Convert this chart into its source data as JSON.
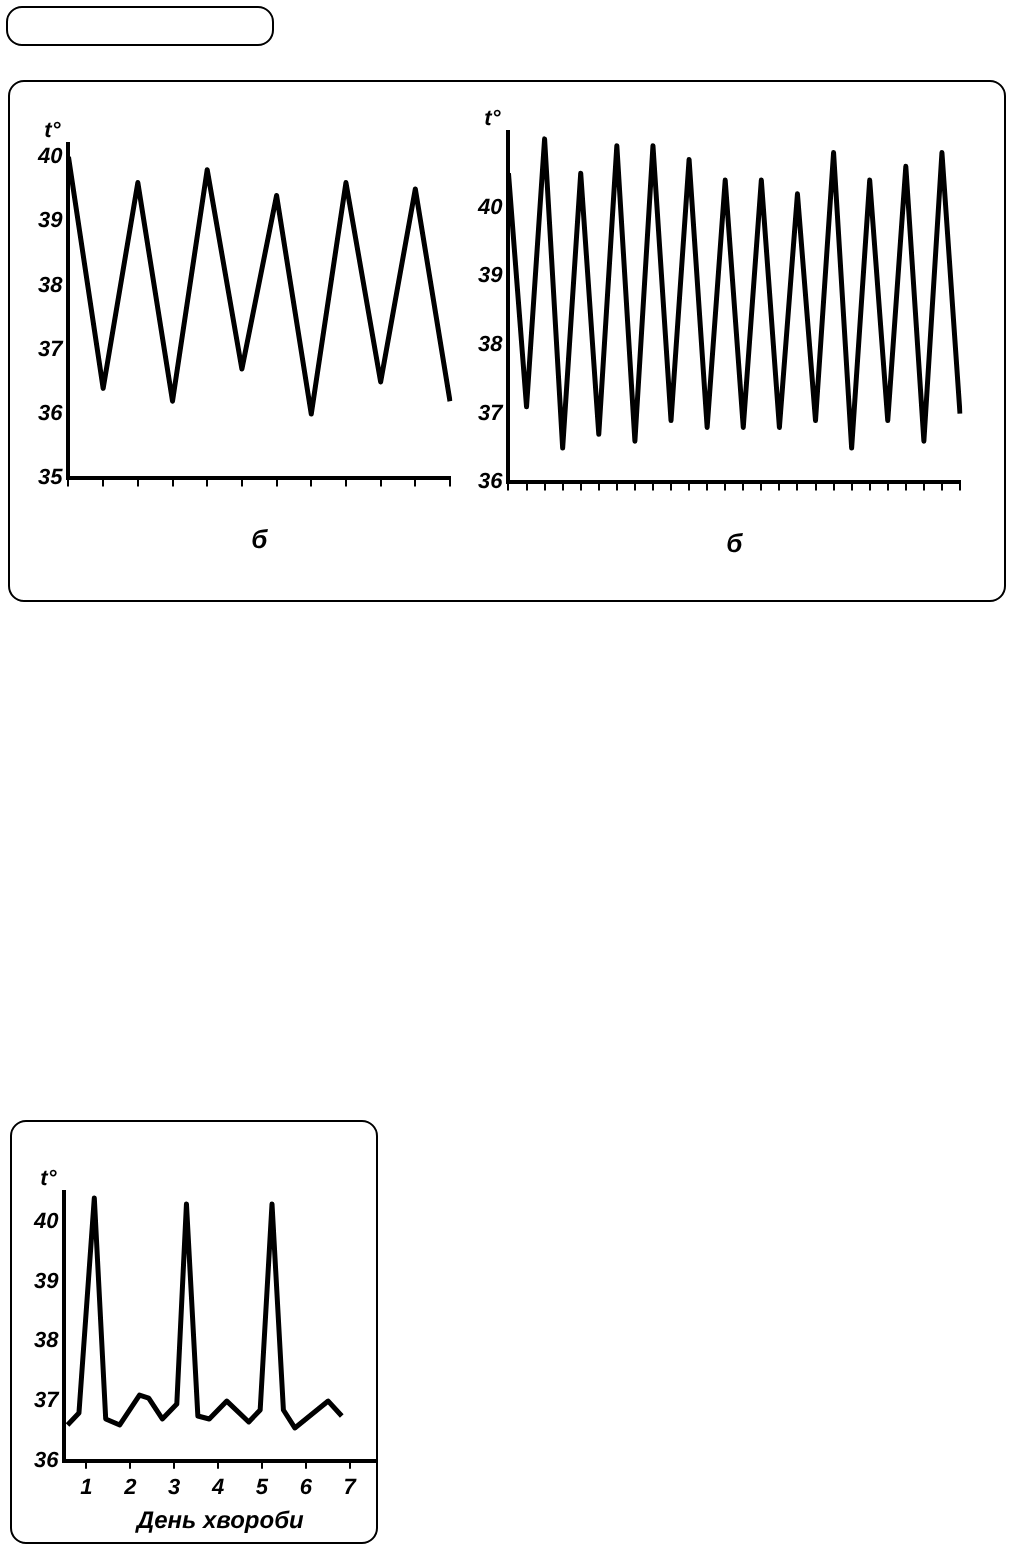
{
  "chart_data": [
    {
      "type": "line",
      "ylabel": "t°",
      "xlabel": "б",
      "categories": [
        null,
        null,
        null,
        null,
        null,
        null,
        null,
        null,
        null,
        null,
        null,
        null
      ],
      "color": "#000000",
      "values": [
        40.0,
        36.4,
        39.6,
        36.2,
        39.8,
        36.7,
        39.4,
        36.0,
        39.6,
        36.5,
        39.5,
        36.2
      ],
      "ylim": [
        35,
        40.2
      ],
      "yticks": [
        35,
        36,
        37,
        38,
        39,
        40
      ],
      "grid": false,
      "legend": false,
      "marker": "none"
    },
    {
      "type": "line",
      "ylabel": "t°",
      "xlabel": "б",
      "categories": [
        null,
        null,
        null,
        null,
        null,
        null,
        null,
        null,
        null,
        null,
        null,
        null,
        null,
        null,
        null,
        null,
        null,
        null,
        null,
        null,
        null,
        null,
        null,
        null,
        null,
        null
      ],
      "color": "#000000",
      "values": [
        40.5,
        37.1,
        41.0,
        36.5,
        40.5,
        36.7,
        40.9,
        36.6,
        40.9,
        36.9,
        40.7,
        36.8,
        40.4,
        36.8,
        40.4,
        36.8,
        40.2,
        36.9,
        40.8,
        36.5,
        40.4,
        36.9,
        40.6,
        36.6,
        40.8,
        37.0
      ],
      "ylim": [
        36,
        41.1
      ],
      "yticks": [
        36,
        37,
        38,
        39,
        40
      ],
      "grid": false,
      "legend": false,
      "marker": "none"
    },
    {
      "type": "line",
      "ylabel": "t°",
      "xlabel": "День хвороби",
      "color": "#000000",
      "x": [
        0.57,
        0.83,
        1.18,
        1.44,
        1.76,
        2.21,
        2.42,
        2.73,
        3.06,
        3.28,
        3.54,
        3.8,
        4.2,
        4.7,
        4.96,
        5.23,
        5.49,
        5.75,
        6.51,
        6.82
      ],
      "values": [
        36.6,
        36.8,
        40.4,
        36.7,
        36.6,
        37.1,
        37.05,
        36.7,
        36.95,
        40.3,
        36.75,
        36.7,
        37.0,
        36.65,
        36.85,
        40.3,
        36.85,
        36.55,
        37.0,
        36.75
      ],
      "xlim": [
        0.5,
        7.6
      ],
      "xticks": [
        1,
        2,
        3,
        4,
        5,
        6,
        7
      ],
      "ylim": [
        36,
        40.5
      ],
      "yticks": [
        36,
        37,
        38,
        39,
        40
      ],
      "grid": false,
      "legend": false,
      "marker": "none"
    }
  ]
}
